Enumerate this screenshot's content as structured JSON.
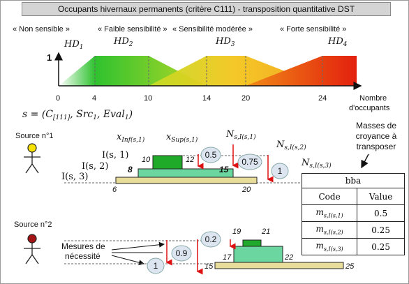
{
  "title": "Occupants hivernaux permanents (critère C111)  -  transposition quantitative DST",
  "categories": [
    "« Non sensible »",
    "« Faible sensibilité »",
    "« Sensibilité modérée »",
    "« Forte sensibilité »"
  ],
  "hd_labels": [
    "HD",
    "HD",
    "HD",
    "HD"
  ],
  "hd_subs": [
    "1",
    "2",
    "3",
    "4"
  ],
  "y_one": "1",
  "axis_ticks": [
    "0",
    "4",
    "10",
    "14",
    "20",
    "24"
  ],
  "axis_label_line1": "Nombre",
  "axis_label_line2": "d'occupants",
  "formula": "s = (C[111], Src1, Eval1)",
  "source1": "Source n°1",
  "source2": "Source n°2",
  "masses_label": [
    "Masses de",
    "croyance à",
    "transposer"
  ],
  "measures_label": [
    "Mesures de",
    "nécessité"
  ],
  "s1_values": {
    "v10": "10",
    "v12": "12",
    "v8": "8",
    "v15": "15",
    "v6": "6",
    "v20": "20",
    "n05": "0.5",
    "n075": "0.75",
    "n1": "1"
  },
  "s2_values": {
    "v19": "19",
    "v21": "21",
    "v17": "17",
    "v22": "22",
    "v15": "15",
    "v25": "25",
    "n02": "0.2",
    "n09": "0.9",
    "n1": "1"
  },
  "s1_labels": {
    "xinf": "x",
    "xinf_sub": "Inf(s,1)",
    "xsup": "x",
    "xsup_sub": "Sup(s,1)",
    "ns1": "N",
    "ns1_sub": "s,I(s,1)",
    "ns2": "N",
    "ns2_sub": "s,I(s,2)",
    "ns3": "N",
    "ns3_sub": "s,I(s,3)",
    "is1": "I(s, 1)",
    "is2": "I(s, 2)",
    "is3": "I(s, 3)"
  },
  "bba": {
    "header": "bba",
    "col_code": "Code",
    "col_value": "Value",
    "rows": [
      {
        "code": "m",
        "code_sub": "s,I(s,1)",
        "value": "0.5"
      },
      {
        "code": "m",
        "code_sub": "s,I(s,2)",
        "value": "0.25"
      },
      {
        "code": "m",
        "code_sub": "s,I(s,3)",
        "value": "0.25"
      }
    ]
  },
  "colors": {
    "green": "#27c027",
    "yellow": "#f0c020",
    "red": "#e02810",
    "bar_dark_green": "#1faa2a",
    "bar_teal": "#6cd6a0",
    "bar_khaki": "#e8dc9a",
    "arrow_red": "#dd1111",
    "bubble": "#dde6f0"
  }
}
